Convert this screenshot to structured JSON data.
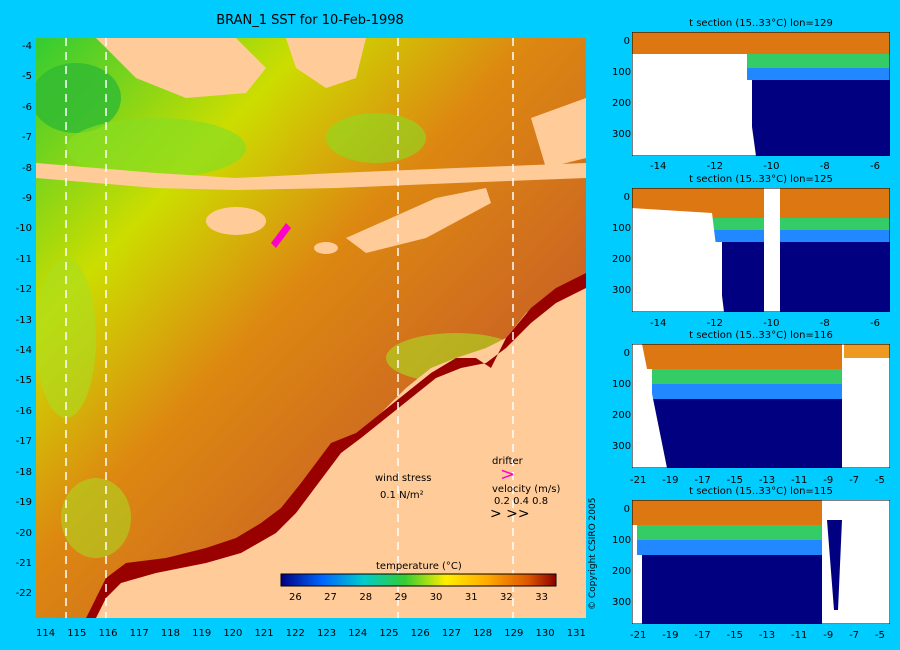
{
  "main": {
    "title": "BRAN_1 SST for 10-Feb-1998",
    "lat_labels": [
      "-4",
      "-5",
      "-6",
      "-7",
      "-8",
      "-9",
      "-10",
      "-11",
      "-12",
      "-13",
      "-14",
      "-15",
      "-16",
      "-17",
      "-18",
      "-19",
      "-20",
      "-21",
      "-22"
    ],
    "lon_labels": [
      "114",
      "115",
      "116",
      "117",
      "118",
      "119",
      "120",
      "121",
      "122",
      "123",
      "124",
      "125",
      "126",
      "127",
      "128",
      "129",
      "130",
      "131"
    ],
    "legend": {
      "wind_label": "wind stress",
      "wind_value": "0.1 N/m²",
      "drifter_label": "drifter",
      "velocity_label": "velocity (m/s)",
      "velocity_values": "0.2 0.4 0.8",
      "colorbar_title": "temperature (°C)",
      "colorbar_ticks": [
        "26",
        "27",
        "28",
        "29",
        "30",
        "31",
        "32",
        "33"
      ]
    }
  },
  "sections": [
    {
      "title": "t section (15..33°C) lon=129",
      "x_ticks": [
        "-14",
        "-12",
        "-10",
        "-8",
        "-6"
      ],
      "y_ticks": [
        "0",
        "100",
        "200",
        "300"
      ]
    },
    {
      "title": "t section (15..33°C) lon=125",
      "x_ticks": [
        "-14",
        "-12",
        "-10",
        "-8",
        "-6"
      ],
      "y_ticks": [
        "0",
        "100",
        "200",
        "300"
      ]
    },
    {
      "title": "t section (15..33°C) lon=116",
      "x_ticks": [
        "-21",
        "-19",
        "-17",
        "-15",
        "-13",
        "-11",
        "-9",
        "-7",
        "-5"
      ],
      "y_ticks": [
        "0",
        "100",
        "200",
        "300"
      ]
    },
    {
      "title": "t section (15..33°C) lon=115",
      "x_ticks": [
        "-21",
        "-19",
        "-17",
        "-15",
        "-13",
        "-11",
        "-9",
        "-7",
        "-5"
      ],
      "y_ticks": [
        "0",
        "100",
        "200",
        "300"
      ]
    }
  ],
  "copyright": "© Copyright CSIRO 2005",
  "colors": {
    "background": "#00ccff",
    "land": "#ffcc99",
    "deep_water": "#000080",
    "warm": "#8b0000"
  }
}
